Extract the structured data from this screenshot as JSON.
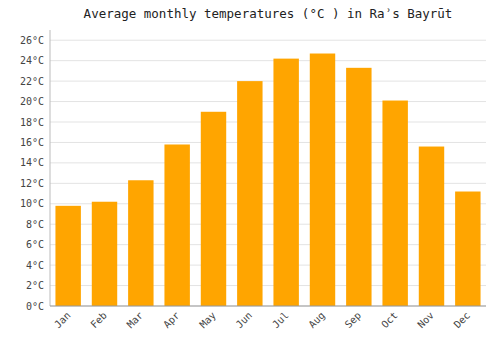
{
  "chart_data": {
    "type": "bar",
    "title": "Average monthly temperatures (°C ) in Raʾs Bayrūt",
    "categories": [
      "Jan",
      "Feb",
      "Mar",
      "Apr",
      "May",
      "Jun",
      "Jul",
      "Aug",
      "Sep",
      "Oct",
      "Nov",
      "Dec"
    ],
    "values": [
      9.8,
      10.2,
      12.3,
      15.8,
      19.0,
      22.0,
      24.2,
      24.7,
      23.3,
      20.1,
      15.6,
      11.2
    ],
    "color": "#FFA500",
    "ylim": [
      0,
      27
    ],
    "yticks": [
      {
        "value": 0,
        "label": "0°C"
      },
      {
        "value": 2,
        "label": "2°C"
      },
      {
        "value": 4,
        "label": "4°C"
      },
      {
        "value": 6,
        "label": "6°C"
      },
      {
        "value": 8,
        "label": "8°C"
      },
      {
        "value": 10,
        "label": "10°C"
      },
      {
        "value": 12,
        "label": "12°C"
      },
      {
        "value": 14,
        "label": "14°C"
      },
      {
        "value": 16,
        "label": "16°C"
      },
      {
        "value": 18,
        "label": "18°C"
      },
      {
        "value": 20,
        "label": "20°C"
      },
      {
        "value": 22,
        "label": "22°C"
      },
      {
        "value": 24,
        "label": "24°C"
      },
      {
        "value": 26,
        "label": "26°C"
      }
    ],
    "grid": true
  }
}
